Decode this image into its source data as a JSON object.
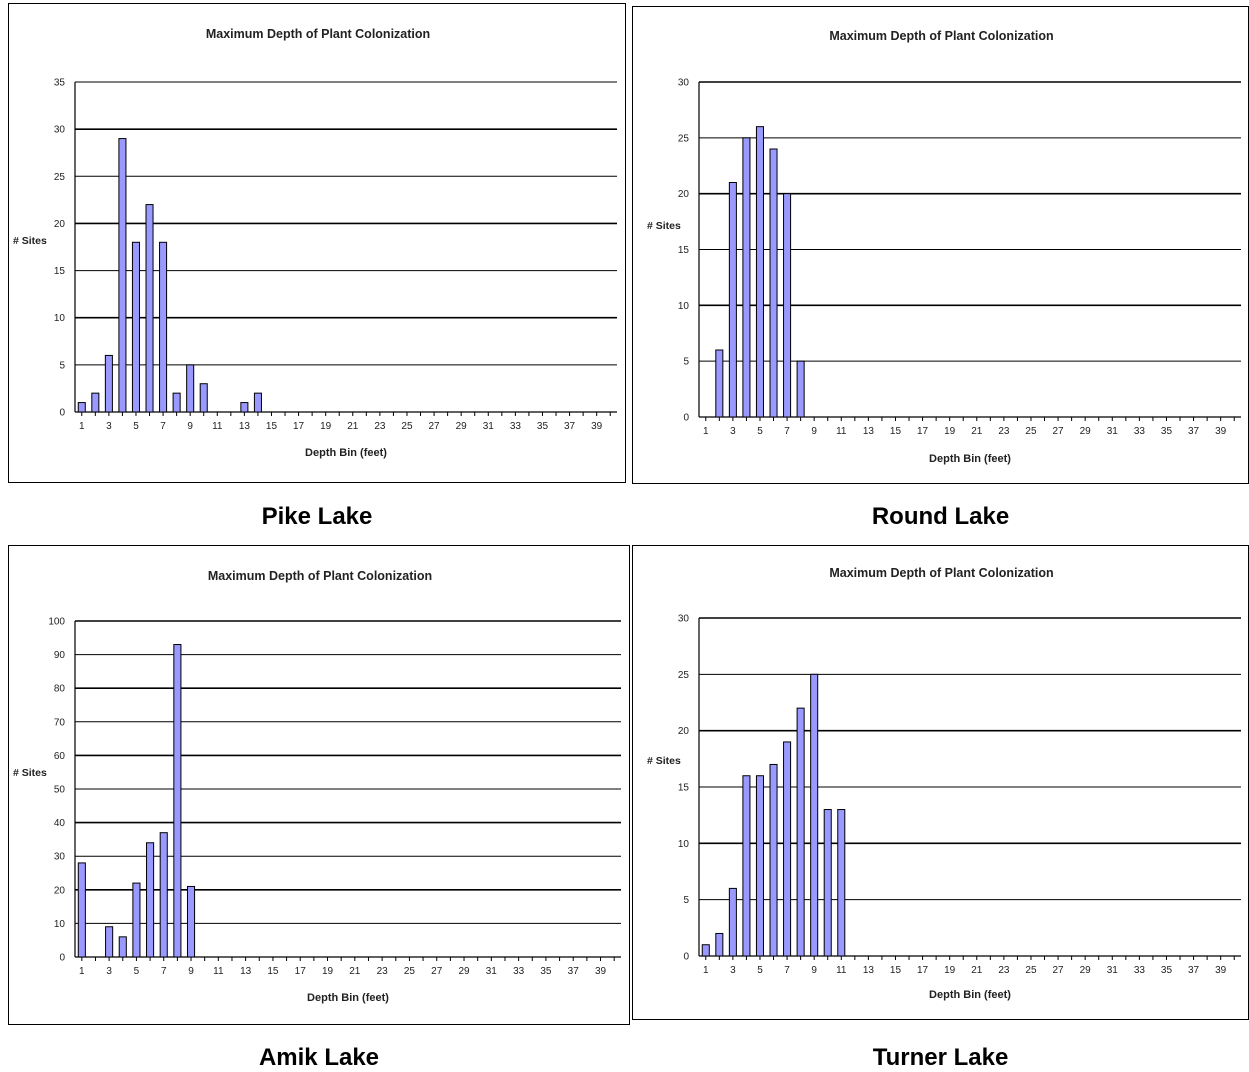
{
  "colors": {
    "bar_fill": "#9999ff",
    "bar_stroke": "#000000",
    "grid": "#000000",
    "background": "#ffffff"
  },
  "chart_data": [
    {
      "type": "bar",
      "caption": "Pike Lake",
      "title": "Maximum Depth of Plant Colonization",
      "xlabel": "Depth Bin (feet)",
      "ylabel": "# Sites",
      "ylim": [
        0,
        35
      ],
      "yticks": [
        0,
        5,
        10,
        15,
        20,
        25,
        30,
        35
      ],
      "categories": [
        1,
        2,
        3,
        4,
        5,
        6,
        7,
        8,
        9,
        10,
        11,
        12,
        13,
        14,
        15,
        16,
        17,
        18,
        19,
        20,
        21,
        22,
        23,
        24,
        25,
        26,
        27,
        28,
        29,
        30,
        31,
        32,
        33,
        34,
        35,
        36,
        37,
        38,
        39,
        40
      ],
      "xtick_labels": [
        "1",
        "3",
        "5",
        "7",
        "9",
        "11",
        "13",
        "15",
        "17",
        "19",
        "21",
        "23",
        "25",
        "27",
        "29",
        "31",
        "33",
        "35",
        "37",
        "39"
      ],
      "values": [
        1,
        2,
        6,
        29,
        18,
        22,
        18,
        2,
        5,
        3,
        0,
        0,
        1,
        2,
        0,
        0,
        0,
        0,
        0,
        0,
        0,
        0,
        0,
        0,
        0,
        0,
        0,
        0,
        0,
        0,
        0,
        0,
        0,
        0,
        0,
        0,
        0,
        0,
        0,
        0
      ],
      "grid": true
    },
    {
      "type": "bar",
      "caption": "Round Lake",
      "title": "Maximum Depth of Plant Colonization",
      "xlabel": "Depth Bin (feet)",
      "ylabel": "# Sites",
      "ylim": [
        0,
        30
      ],
      "yticks": [
        0,
        5,
        10,
        15,
        20,
        25,
        30
      ],
      "categories": [
        1,
        2,
        3,
        4,
        5,
        6,
        7,
        8,
        9,
        10,
        11,
        12,
        13,
        14,
        15,
        16,
        17,
        18,
        19,
        20,
        21,
        22,
        23,
        24,
        25,
        26,
        27,
        28,
        29,
        30,
        31,
        32,
        33,
        34,
        35,
        36,
        37,
        38,
        39,
        40
      ],
      "xtick_labels": [
        "1",
        "3",
        "5",
        "7",
        "9",
        "11",
        "13",
        "15",
        "17",
        "19",
        "21",
        "23",
        "25",
        "27",
        "29",
        "31",
        "33",
        "35",
        "37",
        "39"
      ],
      "values": [
        0,
        6,
        21,
        25,
        26,
        24,
        20,
        5,
        0,
        0,
        0,
        0,
        0,
        0,
        0,
        0,
        0,
        0,
        0,
        0,
        0,
        0,
        0,
        0,
        0,
        0,
        0,
        0,
        0,
        0,
        0,
        0,
        0,
        0,
        0,
        0,
        0,
        0,
        0,
        0
      ],
      "grid": true
    },
    {
      "type": "bar",
      "caption": "Amik Lake",
      "title": "Maximum Depth of Plant Colonization",
      "xlabel": "Depth Bin (feet)",
      "ylabel": "# Sites",
      "ylim": [
        0,
        100
      ],
      "yticks": [
        0,
        10,
        20,
        30,
        40,
        50,
        60,
        70,
        80,
        90,
        100
      ],
      "categories": [
        1,
        2,
        3,
        4,
        5,
        6,
        7,
        8,
        9,
        10,
        11,
        12,
        13,
        14,
        15,
        16,
        17,
        18,
        19,
        20,
        21,
        22,
        23,
        24,
        25,
        26,
        27,
        28,
        29,
        30,
        31,
        32,
        33,
        34,
        35,
        36,
        37,
        38,
        39,
        40
      ],
      "xtick_labels": [
        "1",
        "3",
        "5",
        "7",
        "9",
        "11",
        "13",
        "15",
        "17",
        "19",
        "21",
        "23",
        "25",
        "27",
        "29",
        "31",
        "33",
        "35",
        "37",
        "39"
      ],
      "values": [
        28,
        0,
        9,
        6,
        22,
        34,
        37,
        93,
        21,
        0,
        0,
        0,
        0,
        0,
        0,
        0,
        0,
        0,
        0,
        0,
        0,
        0,
        0,
        0,
        0,
        0,
        0,
        0,
        0,
        0,
        0,
        0,
        0,
        0,
        0,
        0,
        0,
        0,
        0,
        0
      ],
      "grid": true
    },
    {
      "type": "bar",
      "caption": "Turner Lake",
      "title": "Maximum Depth of Plant Colonization",
      "xlabel": "Depth Bin (feet)",
      "ylabel": "# Sites",
      "ylim": [
        0,
        30
      ],
      "yticks": [
        0,
        5,
        10,
        15,
        20,
        25,
        30
      ],
      "categories": [
        1,
        2,
        3,
        4,
        5,
        6,
        7,
        8,
        9,
        10,
        11,
        12,
        13,
        14,
        15,
        16,
        17,
        18,
        19,
        20,
        21,
        22,
        23,
        24,
        25,
        26,
        27,
        28,
        29,
        30,
        31,
        32,
        33,
        34,
        35,
        36,
        37,
        38,
        39,
        40
      ],
      "xtick_labels": [
        "1",
        "3",
        "5",
        "7",
        "9",
        "11",
        "13",
        "15",
        "17",
        "19",
        "21",
        "23",
        "25",
        "27",
        "29",
        "31",
        "33",
        "35",
        "37",
        "39"
      ],
      "values": [
        1,
        2,
        6,
        16,
        16,
        17,
        19,
        22,
        25,
        13,
        13,
        0,
        0,
        0,
        0,
        0,
        0,
        0,
        0,
        0,
        0,
        0,
        0,
        0,
        0,
        0,
        0,
        0,
        0,
        0,
        0,
        0,
        0,
        0,
        0,
        0,
        0,
        0,
        0,
        0
      ],
      "grid": true
    }
  ]
}
